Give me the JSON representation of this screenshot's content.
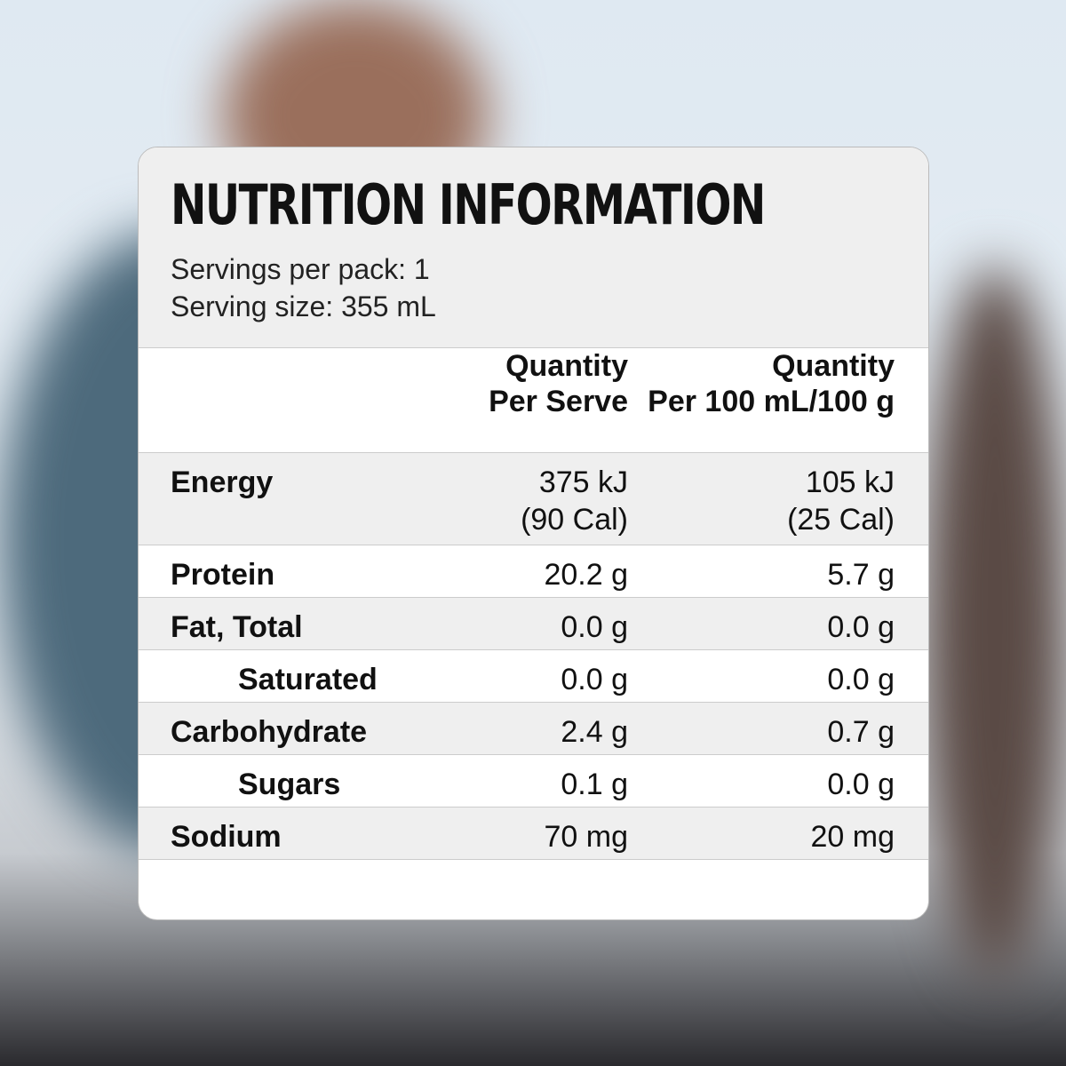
{
  "header": {
    "title": "NUTRITION INFORMATION",
    "servings": "Servings per pack: 1",
    "serving_size": "Serving size: 355 mL"
  },
  "table": {
    "columns": [
      [
        "Quantity",
        "Per Serve"
      ],
      [
        "Quantity",
        "Per 100 mL/100 g"
      ]
    ],
    "rows": [
      {
        "label": "Energy",
        "indent": false,
        "per_serve": [
          "375 kJ",
          "(90 Cal)"
        ],
        "per_100": [
          "105 kJ",
          "(25 Cal)"
        ]
      },
      {
        "label": "Protein",
        "indent": false,
        "per_serve": [
          "20.2 g"
        ],
        "per_100": [
          "5.7 g"
        ]
      },
      {
        "label": "Fat, Total",
        "indent": false,
        "per_serve": [
          "0.0 g"
        ],
        "per_100": [
          "0.0 g"
        ]
      },
      {
        "label": "Saturated",
        "indent": true,
        "per_serve": [
          "0.0 g"
        ],
        "per_100": [
          "0.0 g"
        ]
      },
      {
        "label": "Carbohydrate",
        "indent": false,
        "per_serve": [
          "2.4 g"
        ],
        "per_100": [
          "0.7 g"
        ]
      },
      {
        "label": "Sugars",
        "indent": true,
        "per_serve": [
          "0.1 g"
        ],
        "per_100": [
          "0.0 g"
        ]
      },
      {
        "label": "Sodium",
        "indent": false,
        "per_serve": [
          "70 mg"
        ],
        "per_100": [
          "20 mg"
        ]
      }
    ]
  }
}
